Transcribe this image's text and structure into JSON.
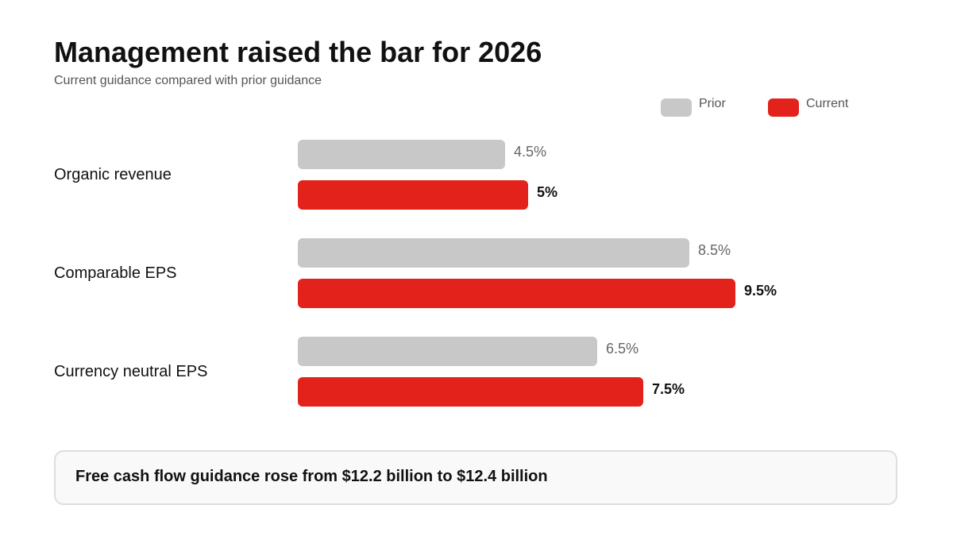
{
  "header": {
    "title": "Management raised the bar for 2026",
    "subtitle": "Current guidance compared with prior guidance"
  },
  "legend": [
    {
      "label": "Prior",
      "color": "#c8c8c8"
    },
    {
      "label": "Current",
      "color": "#e3221c"
    }
  ],
  "chart_data": {
    "type": "bar",
    "orientation": "horizontal",
    "title": "Management raised the bar for 2026",
    "subtitle": "Current guidance compared with prior guidance",
    "categories": [
      "Organic revenue",
      "Comparable EPS",
      "Currency neutral EPS"
    ],
    "series": [
      {
        "name": "Prior",
        "color": "#c8c8c8",
        "values": [
          4.5,
          8.5,
          6.5
        ],
        "labels": [
          "4.5%",
          "8.5%",
          "6.5%"
        ]
      },
      {
        "name": "Current",
        "color": "#e3221c",
        "values": [
          5,
          9.5,
          7.5
        ],
        "labels": [
          "5%",
          "9.5%",
          "7.5%"
        ]
      }
    ],
    "xlim": [
      0,
      10
    ],
    "grid": false,
    "legend_position": "top-right"
  },
  "callout": {
    "text": "Free cash flow guidance rose from $12.2 billion to $12.4 billion"
  }
}
